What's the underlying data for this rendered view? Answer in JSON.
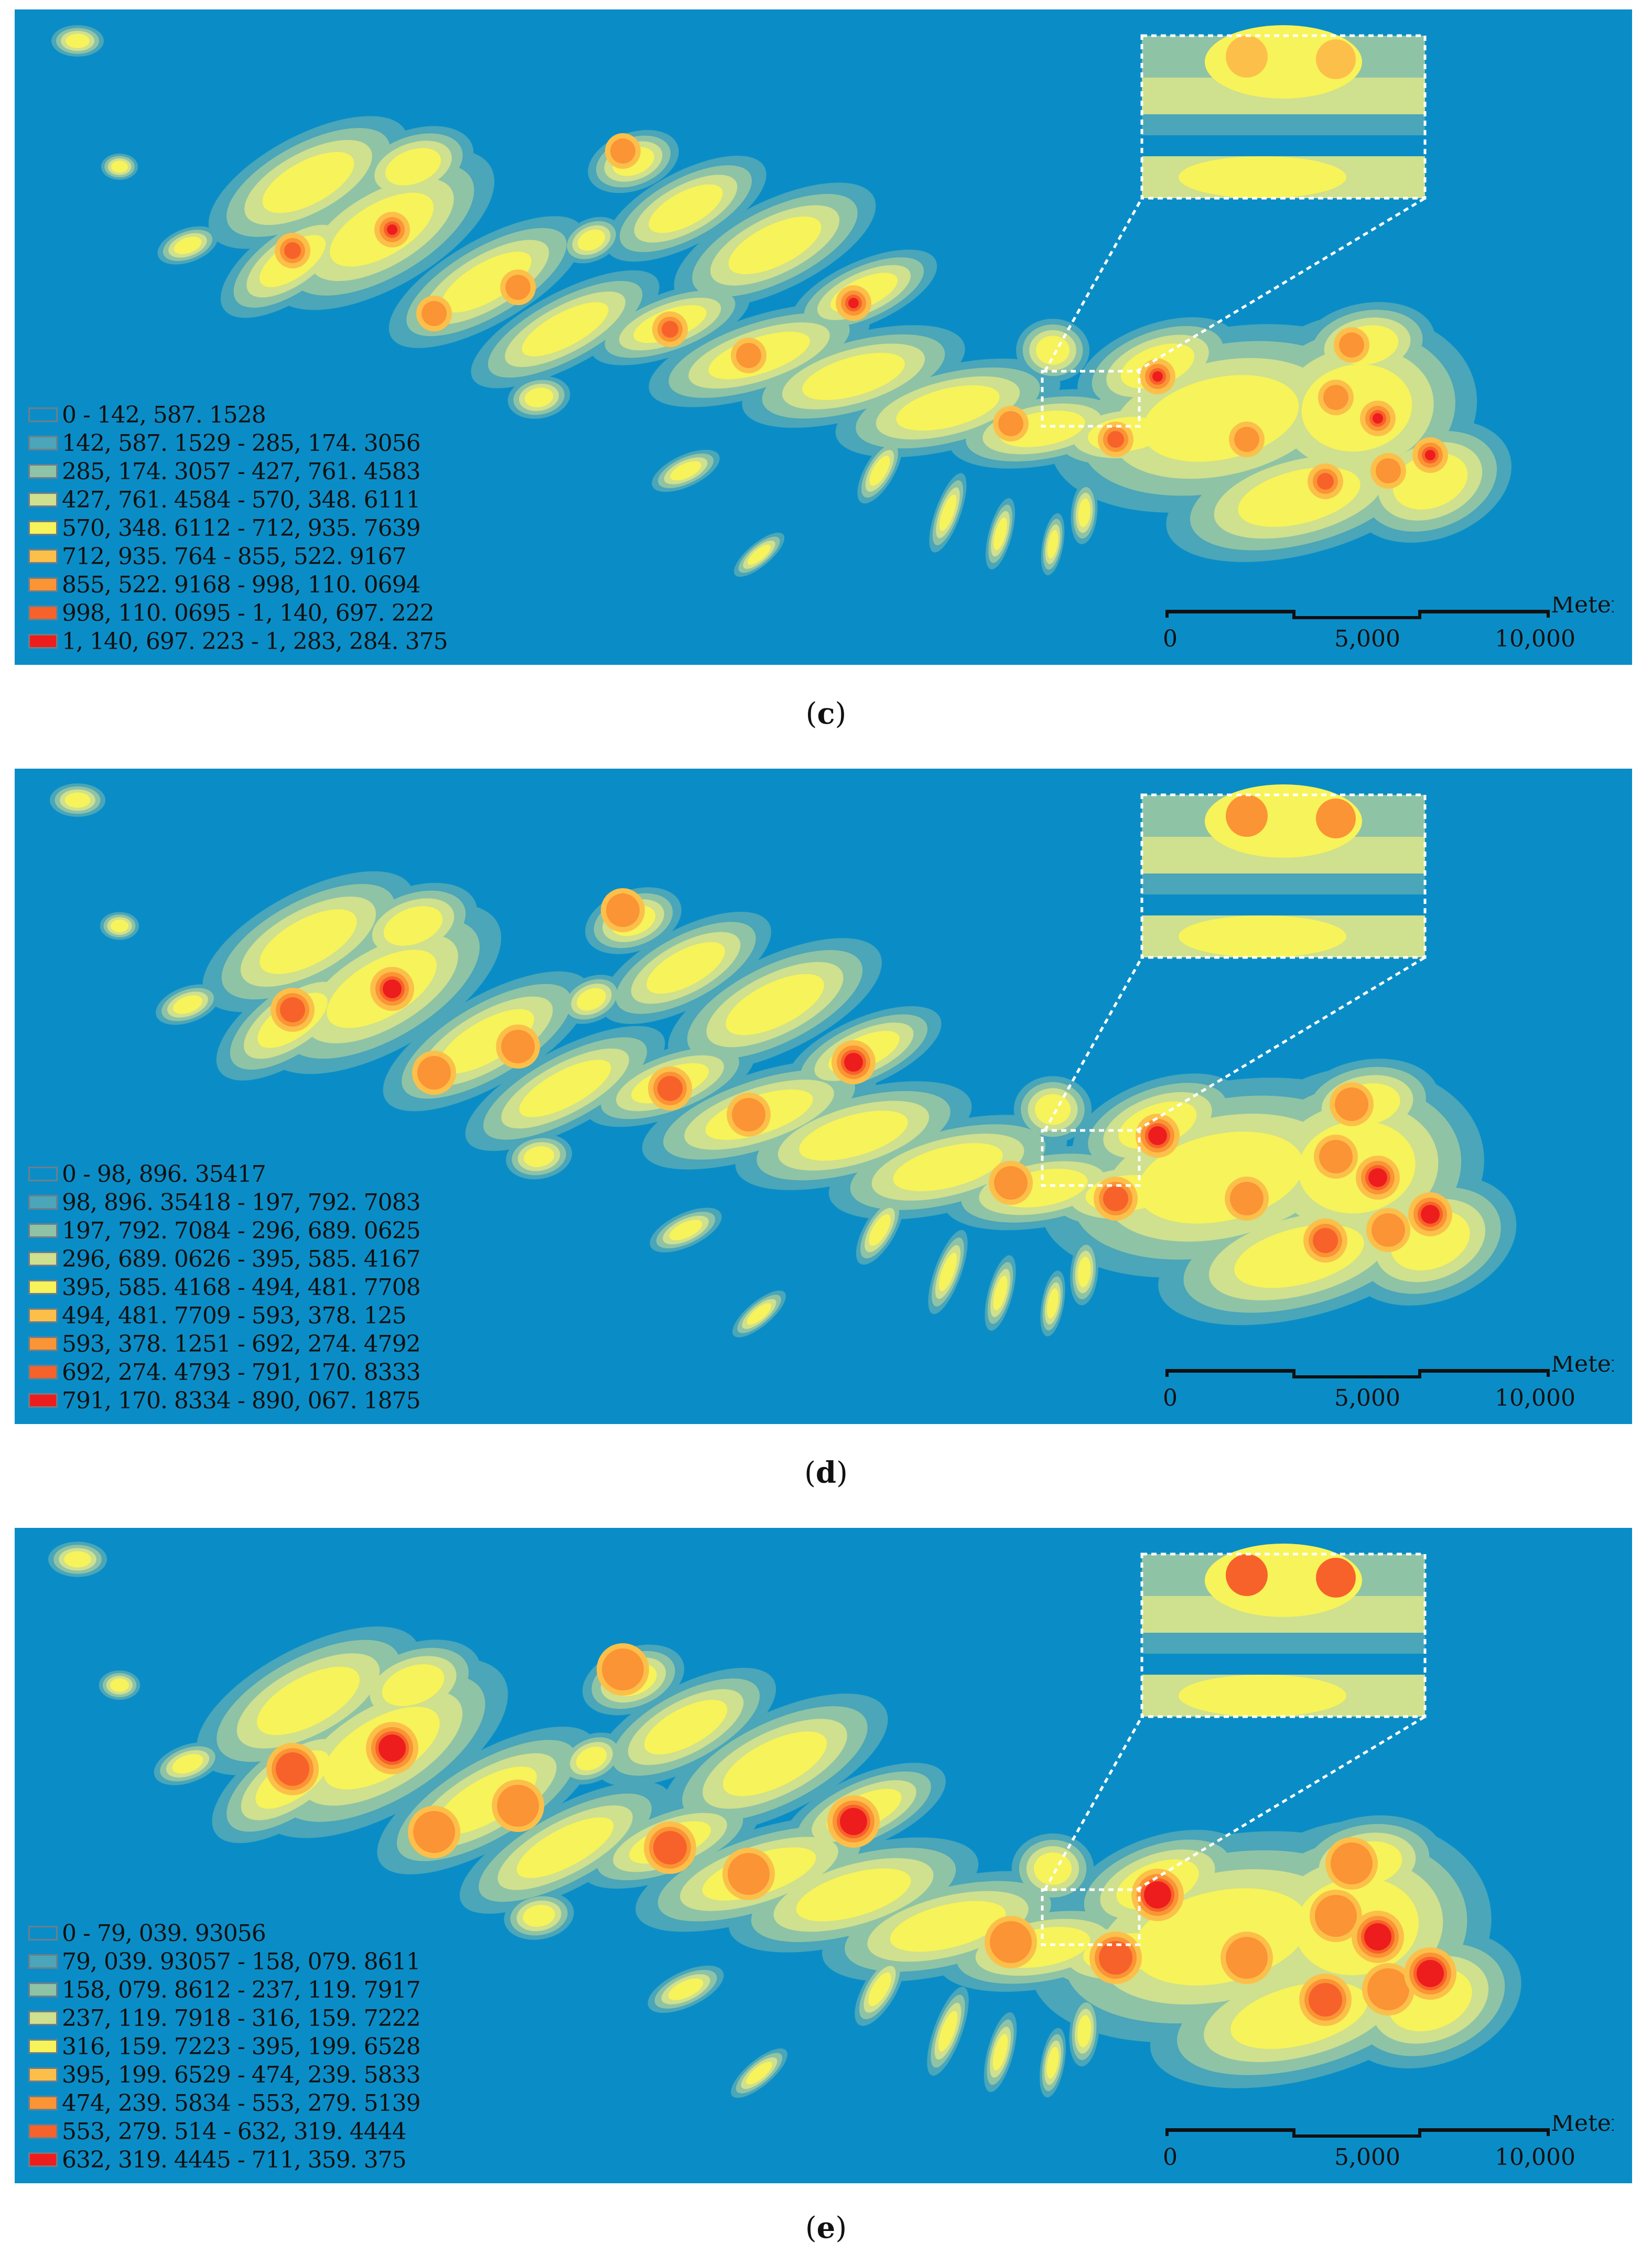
{
  "panels": [
    {
      "caption": "c",
      "legend": [
        {
          "label": "0 - 142, 587. 1528",
          "color": "#0a8dc7"
        },
        {
          "label": "142, 587. 1529 - 285, 174. 3056",
          "color": "#4aa6b8"
        },
        {
          "label": "285, 174. 3057 - 427, 761. 4583",
          "color": "#8fc3a6"
        },
        {
          "label": "427, 761. 4584 - 570, 348. 6111",
          "color": "#cfe08e"
        },
        {
          "label": "570, 348. 6112 - 712, 935. 7639",
          "color": "#f7f35a"
        },
        {
          "label": "712, 935. 764 - 855, 522. 9167",
          "color": "#fcc04a"
        },
        {
          "label": "855, 522. 9168 - 998, 110. 0694",
          "color": "#fb9434"
        },
        {
          "label": "998, 110. 0695 - 1, 140, 697. 222",
          "color": "#f7622a"
        },
        {
          "label": "1, 140, 697. 223 - 1, 283, 284. 375",
          "color": "#ee1d1d"
        }
      ]
    },
    {
      "caption": "d",
      "legend": [
        {
          "label": "0 - 98, 896. 35417",
          "color": "#0a8dc7"
        },
        {
          "label": "98, 896. 35418 - 197, 792. 7083",
          "color": "#4aa6b8"
        },
        {
          "label": "197, 792. 7084 - 296, 689. 0625",
          "color": "#8fc3a6"
        },
        {
          "label": "296, 689. 0626 - 395, 585. 4167",
          "color": "#cfe08e"
        },
        {
          "label": "395, 585. 4168 - 494, 481. 7708",
          "color": "#f7f35a"
        },
        {
          "label": "494, 481. 7709 - 593, 378. 125",
          "color": "#fcc04a"
        },
        {
          "label": "593, 378. 1251 - 692, 274. 4792",
          "color": "#fb9434"
        },
        {
          "label": "692, 274. 4793 - 791, 170. 8333",
          "color": "#f7622a"
        },
        {
          "label": "791, 170. 8334 - 890, 067. 1875",
          "color": "#ee1d1d"
        }
      ]
    },
    {
      "caption": "e",
      "legend": [
        {
          "label": "0 - 79, 039. 93056",
          "color": "#0a8dc7"
        },
        {
          "label": "79, 039. 93057 - 158, 079. 8611",
          "color": "#4aa6b8"
        },
        {
          "label": "158, 079. 8612 - 237, 119. 7917",
          "color": "#8fc3a6"
        },
        {
          "label": "237, 119. 7918 - 316, 159. 7222",
          "color": "#cfe08e"
        },
        {
          "label": "316, 159. 7223 - 395, 199. 6528",
          "color": "#f7f35a"
        },
        {
          "label": "395, 199. 6529 - 474, 239. 5833",
          "color": "#fcc04a"
        },
        {
          "label": "474, 239. 5834 - 553, 279. 5139",
          "color": "#fb9434"
        },
        {
          "label": "553, 279. 514 - 632, 319. 4444",
          "color": "#f7622a"
        },
        {
          "label": "632, 319. 4445 - 711, 359. 375",
          "color": "#ee1d1d"
        }
      ]
    }
  ],
  "scale": {
    "ticks": [
      "0",
      "5,000",
      "10,000"
    ],
    "unit": "Meters"
  },
  "colors": {
    "background": "#0a8dc7",
    "zoom_box": "#ffffff"
  }
}
